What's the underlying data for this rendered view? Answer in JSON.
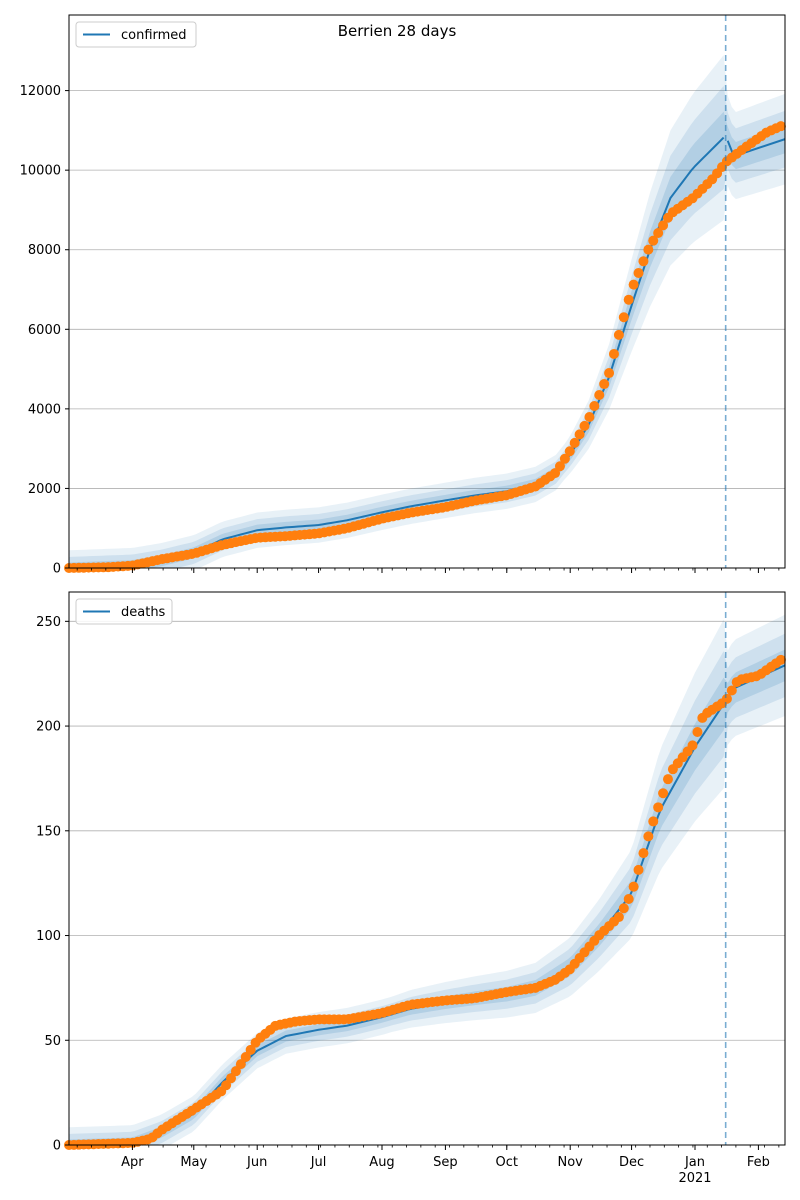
{
  "figure": {
    "title": "Berrien 28 days"
  },
  "colors": {
    "model": "#1f77b4",
    "observed": "#ff7f0e",
    "band": "#1f77b4",
    "grid": "#b0b0b0"
  },
  "x_axis": {
    "start": "2020-03-01",
    "end": "2021-02-14",
    "major_ticks": [
      {
        "date": "2020-04-01",
        "label": "Apr"
      },
      {
        "date": "2020-05-01",
        "label": "May"
      },
      {
        "date": "2020-06-01",
        "label": "Jun"
      },
      {
        "date": "2020-07-01",
        "label": "Jul"
      },
      {
        "date": "2020-08-01",
        "label": "Aug"
      },
      {
        "date": "2020-09-01",
        "label": "Sep"
      },
      {
        "date": "2020-10-01",
        "label": "Oct"
      },
      {
        "date": "2020-11-01",
        "label": "Nov"
      },
      {
        "date": "2020-12-01",
        "label": "Dec"
      },
      {
        "date": "2021-01-01",
        "label": "Jan"
      },
      {
        "date": "2021-02-01",
        "label": "Feb"
      }
    ],
    "year_label": "2021",
    "forecast_start": "2021-01-16"
  },
  "chart_data": [
    {
      "type": "line",
      "legend": "confirmed",
      "legend_position": "upper-left",
      "grid": "y",
      "ylim": [
        0,
        13900
      ],
      "yticks": [
        0,
        2000,
        4000,
        6000,
        8000,
        10000,
        12000
      ],
      "model": {
        "x": [
          "2020-03-01",
          "2020-04-01",
          "2020-04-15",
          "2020-05-01",
          "2020-05-15",
          "2020-06-01",
          "2020-06-15",
          "2020-07-01",
          "2020-07-15",
          "2020-08-01",
          "2020-08-15",
          "2020-09-01",
          "2020-09-15",
          "2020-10-01",
          "2020-10-15",
          "2020-10-25",
          "2020-11-01",
          "2020-11-10",
          "2020-11-20",
          "2020-12-01",
          "2020-12-10",
          "2020-12-20",
          "2020-12-31",
          "2021-01-16",
          "2021-01-20",
          "2021-02-14"
        ],
        "y": [
          0,
          60,
          180,
          380,
          720,
          950,
          1020,
          1080,
          1200,
          1400,
          1550,
          1700,
          1820,
          1930,
          2100,
          2400,
          2850,
          3600,
          4800,
          6600,
          8000,
          9300,
          10050,
          10870,
          10350,
          10780
        ],
        "band_scale": [
          0.5,
          1.0,
          1.6
        ]
      },
      "observed": {
        "x": [
          "2020-03-01",
          "2020-03-20",
          "2020-04-01",
          "2020-04-15",
          "2020-05-01",
          "2020-05-15",
          "2020-06-01",
          "2020-06-15",
          "2020-07-01",
          "2020-07-15",
          "2020-08-01",
          "2020-08-15",
          "2020-09-01",
          "2020-09-15",
          "2020-10-01",
          "2020-10-15",
          "2020-10-25",
          "2020-11-01",
          "2020-11-10",
          "2020-11-20",
          "2020-11-25",
          "2020-12-01",
          "2020-12-10",
          "2020-12-20",
          "2020-12-31",
          "2021-01-10",
          "2021-01-16",
          "2021-01-25",
          "2021-02-05",
          "2021-02-14"
        ],
        "y": [
          0,
          20,
          60,
          220,
          360,
          580,
          760,
          800,
          870,
          1000,
          1240,
          1390,
          1530,
          1690,
          1830,
          2050,
          2400,
          2950,
          3750,
          4900,
          5900,
          7000,
          8100,
          8900,
          9300,
          9800,
          10200,
          10550,
          10950,
          11150
        ]
      }
    },
    {
      "type": "line",
      "legend": "deaths",
      "legend_position": "upper-left",
      "grid": "y",
      "ylim": [
        0,
        264
      ],
      "yticks": [
        0,
        50,
        100,
        150,
        200,
        250
      ],
      "model": {
        "x": [
          "2020-03-01",
          "2020-04-01",
          "2020-04-15",
          "2020-05-01",
          "2020-05-15",
          "2020-06-01",
          "2020-06-15",
          "2020-07-01",
          "2020-07-15",
          "2020-08-01",
          "2020-08-15",
          "2020-09-01",
          "2020-09-15",
          "2020-10-01",
          "2020-10-15",
          "2020-11-01",
          "2020-11-15",
          "2020-12-01",
          "2020-12-15",
          "2021-01-01",
          "2021-01-16",
          "2021-01-20",
          "2021-02-14"
        ],
        "y": [
          0,
          1,
          6,
          15,
          30,
          45,
          52,
          55,
          57,
          61,
          65,
          68,
          70,
          72,
          75,
          85,
          100,
          120,
          160,
          190,
          212,
          218,
          229
        ],
        "band_scale": [
          0.5,
          1.0,
          1.6
        ]
      },
      "observed": {
        "x": [
          "2020-03-01",
          "2020-04-01",
          "2020-04-10",
          "2020-04-15",
          "2020-05-01",
          "2020-05-15",
          "2020-05-25",
          "2020-06-01",
          "2020-06-10",
          "2020-06-20",
          "2020-07-01",
          "2020-07-15",
          "2020-08-01",
          "2020-08-15",
          "2020-09-01",
          "2020-09-15",
          "2020-10-01",
          "2020-10-15",
          "2020-10-25",
          "2020-11-01",
          "2020-11-15",
          "2020-11-25",
          "2020-12-01",
          "2020-12-10",
          "2020-12-20",
          "2020-12-31",
          "2021-01-05",
          "2021-01-16",
          "2021-01-22",
          "2021-02-01",
          "2021-02-14"
        ],
        "y": [
          0,
          1,
          3,
          7,
          17,
          26,
          40,
          50,
          57,
          59,
          60,
          60,
          63,
          67,
          69,
          70,
          73,
          75,
          79,
          84,
          100,
          109,
          120,
          150,
          178,
          191,
          205,
          212,
          222,
          224,
          233
        ]
      }
    }
  ]
}
